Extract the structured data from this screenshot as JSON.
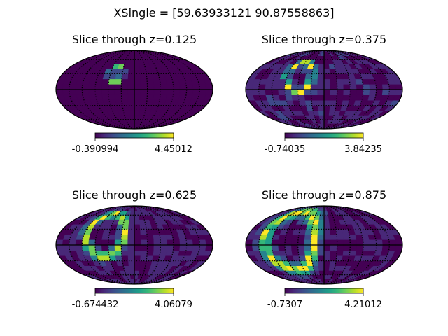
{
  "figure": {
    "suptitle": "XSingle = [59.63933121 90.87558863]"
  },
  "colormap": [
    "#440154",
    "#482878",
    "#3e4989",
    "#31688e",
    "#26828e",
    "#1f9e89",
    "#35b779",
    "#6ece58",
    "#b5de2b",
    "#fde725"
  ],
  "chart_data": [
    {
      "type": "heatmap",
      "projection": "mollweide",
      "title": "Slice through z=0.125",
      "colorbar": {
        "min": -0.390994,
        "max": 4.45012,
        "min_label": "-0.390994",
        "max_label": "4.45012"
      },
      "graticule": {
        "meridian_step_deg": 30,
        "parallel_step_deg": 30,
        "style": "dotted"
      },
      "feature": {
        "center_lon": -45,
        "center_lat": 30,
        "radius_deg": 14,
        "peak": 0.9,
        "background": 0.08
      }
    },
    {
      "type": "heatmap",
      "projection": "mollweide",
      "title": "Slice through z=0.375",
      "colorbar": {
        "min": -0.74035,
        "max": 3.84235,
        "min_label": "-0.74035",
        "max_label": "3.84235"
      },
      "graticule": {
        "meridian_step_deg": 30,
        "parallel_step_deg": 30,
        "style": "dotted"
      },
      "feature": {
        "center_lon": -60,
        "center_lat": 25,
        "radius_deg": 28,
        "peak": 0.95,
        "background": 0.22
      }
    },
    {
      "type": "heatmap",
      "projection": "mollweide",
      "title": "Slice through z=0.625",
      "colorbar": {
        "min": -0.674432,
        "max": 4.06079,
        "min_label": "-0.674432",
        "max_label": "4.06079"
      },
      "graticule": {
        "meridian_step_deg": 30,
        "parallel_step_deg": 30,
        "style": "dotted"
      },
      "feature": {
        "center_lon": -70,
        "center_lat": 20,
        "radius_deg": 42,
        "peak": 0.95,
        "background": 0.2
      }
    },
    {
      "type": "heatmap",
      "projection": "mollweide",
      "title": "Slice through z=0.875",
      "colorbar": {
        "min": -0.7307,
        "max": 4.21012,
        "min_label": "-0.7307",
        "max_label": "4.21012"
      },
      "graticule": {
        "meridian_step_deg": 30,
        "parallel_step_deg": 30,
        "style": "dotted"
      },
      "feature": {
        "center_lon": -80,
        "center_lat": 10,
        "radius_deg": 58,
        "peak": 0.95,
        "background": 0.18
      }
    }
  ]
}
